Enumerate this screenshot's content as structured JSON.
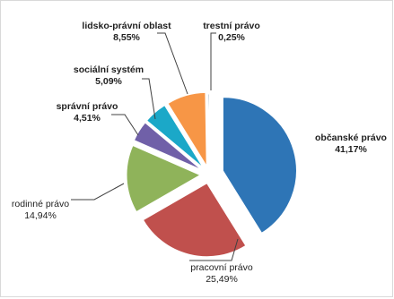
{
  "chart_data": {
    "type": "pie",
    "title": "",
    "start_angle_deg": 90,
    "direction": "clockwise",
    "exploded": true,
    "slices": [
      {
        "key": "obcanske",
        "name": "občanské právo",
        "value": 41.17,
        "value_label": "41,17%",
        "color": "#2E75B6",
        "bold": true
      },
      {
        "key": "pracovni",
        "name": "pracovní právo",
        "value": 25.49,
        "value_label": "25,49%",
        "color": "#C0504D",
        "bold": false
      },
      {
        "key": "rodinne",
        "name": "rodinné právo",
        "value": 14.94,
        "value_label": "14,94%",
        "color": "#8FB35A",
        "bold": false
      },
      {
        "key": "spravni",
        "name": "správní právo",
        "value": 4.51,
        "value_label": "4,51%",
        "color": "#7060A8",
        "bold": true
      },
      {
        "key": "socialni",
        "name": "sociální systém",
        "value": 5.09,
        "value_label": "5,09%",
        "color": "#1BA8C8",
        "bold": true
      },
      {
        "key": "lidsko",
        "name": "lidsko-právní oblast",
        "value": 8.55,
        "value_label": "8,55%",
        "color": "#F79646",
        "bold": true
      },
      {
        "key": "trestni",
        "name": "trestní právo",
        "value": 0.25,
        "value_label": "0,25%",
        "color": "#4A6C8C",
        "bold": true
      }
    ]
  }
}
